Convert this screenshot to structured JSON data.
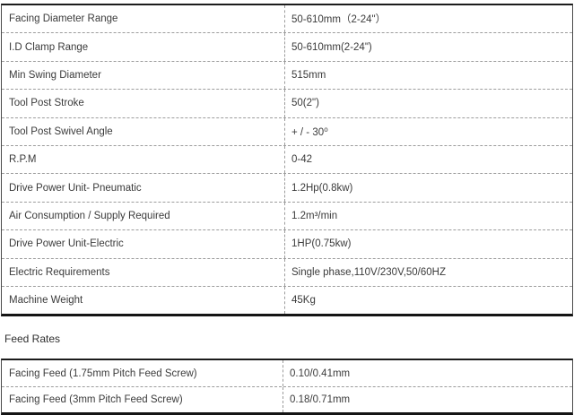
{
  "colors": {
    "background": "#ffffff",
    "text": "#3b3b3b",
    "heavy_border": "#1c1c1c",
    "dashed_divider": "#9c9c9c"
  },
  "spec_table": {
    "rows": [
      {
        "label": "Facing Diameter Range",
        "value": "50-610mm（2-24\"）"
      },
      {
        "label": "I.D Clamp Range",
        "value": "50-610mm(2-24\")"
      },
      {
        "label": "Min Swing Diameter",
        "value": "515mm"
      },
      {
        "label": "Tool Post Stroke",
        "value": "50(2\")"
      },
      {
        "label": "Tool Post Swivel Angle",
        "value": "+ / - 30⁰"
      },
      {
        "label": "R.P.M",
        "value": "0-42"
      },
      {
        "label": "Drive Power Unit- Pneumatic",
        "value": "1.2Hp(0.8kw)"
      },
      {
        "label": "Air Consumption / Supply Required",
        "value": "1.2m³/min"
      },
      {
        "label": "Drive Power Unit-Electric",
        "value": "1HP(0.75kw)"
      },
      {
        "label": "Electric Requirements",
        "value": "Single phase,110V/230V,50/60HZ"
      },
      {
        "label": "Machine Weight",
        "value": "45Kg"
      }
    ]
  },
  "feed_rates": {
    "heading": "Feed Rates",
    "rows": [
      {
        "label": "Facing Feed (1.75mm Pitch Feed Screw)",
        "value": "0.10/0.41mm"
      },
      {
        "label": "Facing Feed (3mm Pitch Feed Screw)",
        "value": "0.18/0.71mm"
      }
    ]
  }
}
